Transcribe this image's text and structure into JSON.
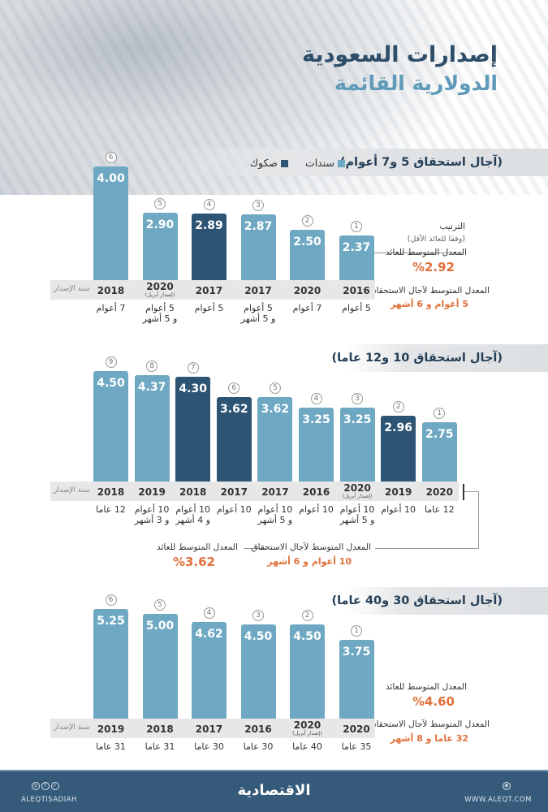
{
  "header": {
    "title_line1": "إصدارات السعودية",
    "title_line2": "الدولارية القائمة"
  },
  "legend": {
    "bonds": "سندات",
    "sukuk": "صكوك",
    "bonds_color": "#6fa8c3",
    "sukuk_color": "#2e5474"
  },
  "labels": {
    "issue_year": "سنة الإصدار",
    "ranking": "الترتيب",
    "ranking_note": "(وفقا للعائد الأقل)",
    "avg_yield": "المعدل المتوسط للعائد",
    "avg_maturity": "المعدل المتوسط لآجال الاستحقاق"
  },
  "accent_color": "#e0703a",
  "chart_data": [
    {
      "type": "bar",
      "title": "(آجال استحقاق 5 و7 أعوام)",
      "avg_yield": "%2.92",
      "avg_maturity": "5 أعوام و 6 أشهر",
      "categories": [
        "2018",
        "2020",
        "2017",
        "2017",
        "2020",
        "2016"
      ],
      "category_notes": [
        "",
        "(إصدار أبريل)",
        "",
        "",
        "",
        ""
      ],
      "values": [
        4.0,
        2.9,
        2.89,
        2.87,
        2.5,
        2.37
      ],
      "ranks": [
        "6",
        "5",
        "4",
        "3",
        "2",
        "1"
      ],
      "instrument": [
        "bonds",
        "bonds",
        "sukuk",
        "bonds",
        "bonds",
        "bonds"
      ],
      "maturity": [
        [
          "7 أعوام"
        ],
        [
          "5 أعوام",
          "و 5 أشهر"
        ],
        [
          "5 أعوام"
        ],
        [
          "5 أعوام",
          "و 5 أشهر"
        ],
        [
          "7 أعوام"
        ],
        [
          "5 أعوام"
        ]
      ]
    },
    {
      "type": "bar",
      "title": "(آجال استحقاق 10 و12 عاما)",
      "avg_yield": "%3.62",
      "avg_maturity": "10 أعوام و 6 أشهر",
      "categories": [
        "2018",
        "2019",
        "2018",
        "2017",
        "2017",
        "2016",
        "2020",
        "2019",
        "2020"
      ],
      "category_notes": [
        "",
        "",
        "",
        "",
        "",
        "",
        "(إصدار أبريل)",
        "",
        ""
      ],
      "values": [
        4.5,
        4.37,
        4.3,
        3.62,
        3.62,
        3.25,
        3.25,
        2.96,
        2.75
      ],
      "ranks": [
        "9",
        "8",
        "7",
        "6",
        "5",
        "4",
        "3",
        "2",
        "1"
      ],
      "instrument": [
        "bonds",
        "bonds",
        "sukuk",
        "sukuk",
        "bonds",
        "bonds",
        "bonds",
        "sukuk",
        "bonds"
      ],
      "maturity": [
        [
          "12 عاما"
        ],
        [
          "10 أعوام",
          "و 3 أشهر"
        ],
        [
          "10 أعوام",
          "و 4 أشهر"
        ],
        [
          "10 أعوام"
        ],
        [
          "10 أعوام",
          "و 5 أشهر"
        ],
        [
          "10 أعوام"
        ],
        [
          "10 أعوام",
          "و 5 أشهر"
        ],
        [
          "10 أعوام"
        ],
        [
          "12 عاما"
        ]
      ]
    },
    {
      "type": "bar",
      "title": "(آجال استحقاق 30 و40 عاما)",
      "avg_yield": "%4.60",
      "avg_maturity": "32 عاما و 8 أشهر",
      "categories": [
        "2019",
        "2018",
        "2017",
        "2016",
        "2020",
        "2020"
      ],
      "category_notes": [
        "",
        "",
        "",
        "",
        "(إصدار أبريل)",
        ""
      ],
      "values": [
        5.25,
        5.0,
        4.62,
        4.5,
        4.5,
        3.75
      ],
      "ranks": [
        "6",
        "5",
        "4",
        "3",
        "2",
        "1"
      ],
      "instrument": [
        "bonds",
        "bonds",
        "bonds",
        "bonds",
        "bonds",
        "bonds"
      ],
      "maturity": [
        [
          "31 عاما"
        ],
        [
          "31 عاما"
        ],
        [
          "30 عاما"
        ],
        [
          "30 عاما"
        ],
        [
          "40 عاما"
        ],
        [
          "35 عاما"
        ]
      ]
    }
  ],
  "footer": {
    "logo": "الاقتصادية",
    "social_handle": "ALEQTISADIAH",
    "website": "WWW.ALEQT.COM",
    "social_icons": [
      "instagram-icon",
      "facebook-icon",
      "twitter-icon"
    ],
    "web_icon": "globe-icon"
  }
}
